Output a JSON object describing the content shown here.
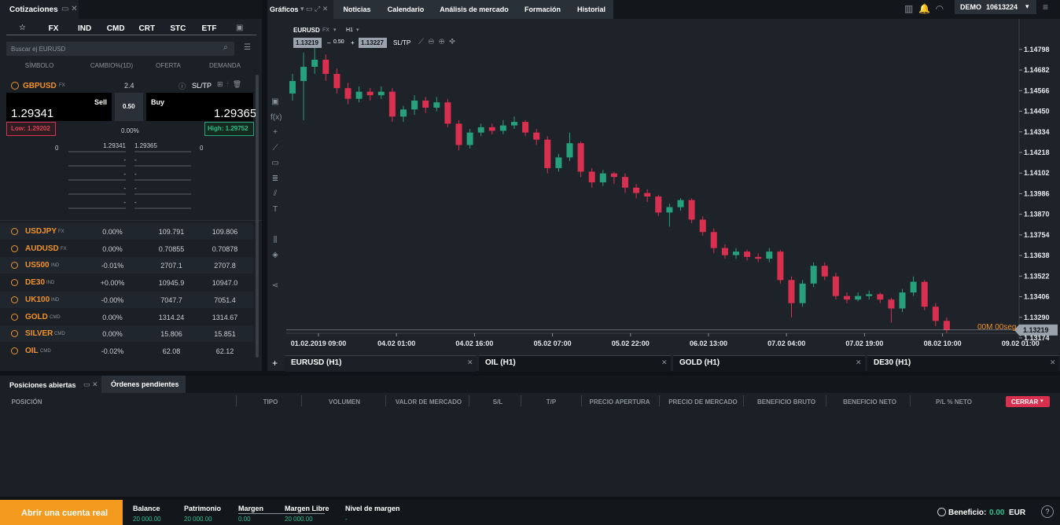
{
  "top_bar": {
    "charts_menu": "Gráficos",
    "tabs": [
      "Noticias",
      "Calendario",
      "Análisis de mercado",
      "Formación",
      "Historial"
    ],
    "account_type": "DEMO",
    "account_number": "10613224"
  },
  "quotes_panel": {
    "title": "Cotizaciones",
    "tabs": [
      "FX",
      "IND",
      "CMD",
      "CRT",
      "STC",
      "ETF"
    ],
    "search_placeholder": "Buscar ej EURUSD",
    "columns": [
      "SÍMBOLO",
      "CAMBIO%(1D)",
      "OFERTA",
      "DEMANDA"
    ],
    "selected": {
      "symbol": "GBPUSD",
      "type": "FX",
      "spread": "2.4",
      "sltp": "SL/TP",
      "sell_label": "Sell",
      "sell_price": "1.29341",
      "center": "0.50",
      "buy_label": "Buy",
      "buy_price": "1.29365",
      "low": "Low: 1.29202",
      "change": "0.00%",
      "high": "High: 1.29752",
      "depth_left": "0",
      "depth_right": "0",
      "depth": [
        [
          "1.29341",
          "1.29365"
        ],
        [
          "-",
          "-"
        ],
        [
          "-",
          "-"
        ],
        [
          "-",
          "-"
        ],
        [
          "-",
          "-"
        ]
      ]
    },
    "rows": [
      {
        "symbol": "USDJPY",
        "type": "FX",
        "change": "0.00%",
        "bid": "109.791",
        "ask": "109.806"
      },
      {
        "symbol": "AUDUSD",
        "type": "FX",
        "change": "0.00%",
        "bid": "0.70855",
        "ask": "0.70878"
      },
      {
        "symbol": "US500",
        "type": "IND",
        "change": "-0.01%",
        "bid": "2707.1",
        "ask": "2707.8"
      },
      {
        "symbol": "DE30",
        "type": "IND",
        "change": "+0.00%",
        "bid": "10945.9",
        "ask": "10947.0"
      },
      {
        "symbol": "UK100",
        "type": "IND",
        "change": "-0.00%",
        "bid": "7047.7",
        "ask": "7051.4"
      },
      {
        "symbol": "GOLD",
        "type": "CMD",
        "change": "0.00%",
        "bid": "1314.24",
        "ask": "1314.67"
      },
      {
        "symbol": "SILVER",
        "type": "CMD",
        "change": "0.00%",
        "bid": "15.806",
        "ask": "15.851"
      },
      {
        "symbol": "OIL",
        "type": "CMD",
        "change": "-0.02%",
        "bid": "62.08",
        "ask": "62.12"
      }
    ]
  },
  "chart_data": {
    "type": "candlestick",
    "symbol": "EURUSD",
    "instrument_type": "FX",
    "timeframe": "H1",
    "bid": "1.13219",
    "spread": "0.50",
    "ask": "1.13227",
    "sltp": "SL/TP",
    "countdown": "00M 00seg",
    "up_color": "#26a17b",
    "down_color": "#d9304f",
    "x_labels": [
      "01.02.2019 09:00",
      "04.02 01:00",
      "04.02 16:00",
      "05.02 07:00",
      "05.02 22:00",
      "06.02 13:00",
      "07.02 04:00",
      "07.02 19:00",
      "08.02 10:00",
      "09.02 01:00"
    ],
    "ylim": [
      1.13174,
      1.14877
    ],
    "yticks": [
      1.14798,
      1.14682,
      1.14566,
      {
        "value": 1.1445,
        "label": "1.14450"
      },
      1.14334,
      1.14218,
      1.14102,
      1.13986,
      {
        "value": 1.1387,
        "label": "1.13870"
      },
      1.13754,
      1.13638,
      1.13522,
      1.13406,
      {
        "value": 1.1329,
        "label": "1.13290"
      },
      1.13174
    ],
    "last": 1.13219,
    "ohlc": [
      [
        1.1455,
        1.1466,
        1.1451,
        1.1462
      ],
      [
        1.1462,
        1.1478,
        1.144,
        1.147
      ],
      [
        1.147,
        1.1481,
        1.1466,
        1.1474
      ],
      [
        1.1474,
        1.1477,
        1.1462,
        1.1466
      ],
      [
        1.1466,
        1.1469,
        1.1455,
        1.1458
      ],
      [
        1.1458,
        1.1461,
        1.1449,
        1.1452
      ],
      [
        1.1452,
        1.1459,
        1.145,
        1.1456
      ],
      [
        1.1456,
        1.1458,
        1.1451,
        1.1454
      ],
      [
        1.1454,
        1.1459,
        1.1452,
        1.1456
      ],
      [
        1.1456,
        1.1458,
        1.1439,
        1.1442
      ],
      [
        1.1442,
        1.1448,
        1.1439,
        1.1446
      ],
      [
        1.1446,
        1.1454,
        1.1443,
        1.1451
      ],
      [
        1.1451,
        1.1453,
        1.1444,
        1.1447
      ],
      [
        1.1447,
        1.1453,
        1.1445,
        1.145
      ],
      [
        1.145,
        1.1452,
        1.1436,
        1.1438
      ],
      [
        1.1438,
        1.144,
        1.1423,
        1.1426
      ],
      [
        1.1426,
        1.1435,
        1.1424,
        1.1433
      ],
      [
        1.1433,
        1.1438,
        1.1431,
        1.1436
      ],
      [
        1.1436,
        1.1438,
        1.1432,
        1.1434
      ],
      [
        1.1434,
        1.144,
        1.1432,
        1.1437
      ],
      [
        1.1437,
        1.1442,
        1.1435,
        1.1439
      ],
      [
        1.1439,
        1.144,
        1.1431,
        1.1433
      ],
      [
        1.1433,
        1.1435,
        1.1426,
        1.1429
      ],
      [
        1.1429,
        1.1431,
        1.141,
        1.1413
      ],
      [
        1.1413,
        1.1421,
        1.1411,
        1.1419
      ],
      [
        1.1419,
        1.1433,
        1.1417,
        1.1427
      ],
      [
        1.1427,
        1.1428,
        1.1408,
        1.1411
      ],
      [
        1.1411,
        1.1413,
        1.1402,
        1.1405
      ],
      [
        1.1405,
        1.1412,
        1.1403,
        1.141
      ],
      [
        1.141,
        1.1411,
        1.1404,
        1.1408
      ],
      [
        1.1408,
        1.141,
        1.1399,
        1.1402
      ],
      [
        1.1402,
        1.1404,
        1.1396,
        1.1399
      ],
      [
        1.1399,
        1.1401,
        1.1394,
        1.1397
      ],
      [
        1.1397,
        1.1398,
        1.1386,
        1.1388
      ],
      [
        1.1388,
        1.1393,
        1.138,
        1.1391
      ],
      [
        1.1391,
        1.1396,
        1.1389,
        1.1395
      ],
      [
        1.1395,
        1.1396,
        1.1382,
        1.1384
      ],
      [
        1.1384,
        1.1386,
        1.1375,
        1.1377
      ],
      [
        1.1377,
        1.1379,
        1.1365,
        1.1368
      ],
      [
        1.1368,
        1.137,
        1.1362,
        1.1364
      ],
      [
        1.1364,
        1.1368,
        1.1362,
        1.1366
      ],
      [
        1.1366,
        1.1367,
        1.1361,
        1.1363
      ],
      [
        1.1363,
        1.1365,
        1.136,
        1.1362
      ],
      [
        1.1362,
        1.1368,
        1.136,
        1.1366
      ],
      [
        1.1366,
        1.1367,
        1.1348,
        1.135
      ],
      [
        1.135,
        1.1352,
        1.1329,
        1.1337
      ],
      [
        1.1337,
        1.135,
        1.1335,
        1.1348
      ],
      [
        1.1348,
        1.136,
        1.1346,
        1.1358
      ],
      [
        1.1358,
        1.136,
        1.135,
        1.1352
      ],
      [
        1.1352,
        1.1354,
        1.1339,
        1.1341
      ],
      [
        1.1341,
        1.1343,
        1.1337,
        1.1339
      ],
      [
        1.1339,
        1.1343,
        1.1338,
        1.1341
      ],
      [
        1.1341,
        1.1344,
        1.1339,
        1.1342
      ],
      [
        1.1342,
        1.1343,
        1.1337,
        1.1339
      ],
      [
        1.1339,
        1.134,
        1.1326,
        1.1334
      ],
      [
        1.1334,
        1.1345,
        1.1332,
        1.1343
      ],
      [
        1.1343,
        1.1352,
        1.1341,
        1.1349
      ],
      [
        1.1349,
        1.135,
        1.1333,
        1.1335
      ],
      [
        1.1335,
        1.1337,
        1.1324,
        1.1327
      ],
      [
        1.1327,
        1.1329,
        1.132,
        1.1322
      ]
    ]
  },
  "chart_tabs": [
    "EURUSD (H1)",
    "OIL (H1)",
    "GOLD (H1)",
    "DE30 (H1)"
  ],
  "positions_panel": {
    "tabs": [
      "Posiciones abiertas",
      "Órdenes pendientes"
    ],
    "columns": [
      "POSICIÓN",
      "TIPO",
      "VOLUMEN",
      "VALOR DE MERCADO",
      "S/L",
      "T/P",
      "PRECIO APERTURA",
      "PRECIO DE MERCADO",
      "BENEFICIO BRUTO",
      "BENEFICIO NETO",
      "P/L % NETO"
    ],
    "close_button": "CERRAR"
  },
  "footer": {
    "cta": "Abrir una cuenta real",
    "stats": [
      {
        "label": "Balance",
        "value": "20 000.00"
      },
      {
        "label": "Patrimonio",
        "value": "20 000.00"
      },
      {
        "label": "Margen",
        "value": "0.00"
      },
      {
        "label": "Margen Libre",
        "value": "20 000.00"
      },
      {
        "label": "Nivel de margen",
        "value": "-"
      }
    ],
    "profit_label": "Beneficio:",
    "profit_value": "0.00",
    "currency": "EUR"
  }
}
